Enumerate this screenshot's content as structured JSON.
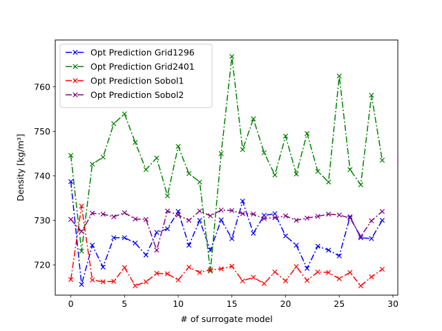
{
  "chart_data": {
    "type": "line",
    "xlabel": "# of surrogate model",
    "ylabel": "Density [kg/m³]",
    "xlim": [
      -1.45,
      30.45
    ],
    "ylim": [
      713.2,
      770.5
    ],
    "xticks": [
      0,
      5,
      10,
      15,
      20,
      25,
      30
    ],
    "yticks": [
      720,
      730,
      740,
      750,
      760
    ],
    "legend_position": "top-left",
    "grid": false,
    "x": [
      0,
      1,
      2,
      3,
      4,
      5,
      6,
      7,
      8,
      9,
      10,
      11,
      12,
      13,
      14,
      15,
      16,
      17,
      18,
      19,
      20,
      21,
      22,
      23,
      24,
      25,
      26,
      27,
      28,
      29
    ],
    "series": [
      {
        "name": "Opt Prediction Grid1296",
        "color": "#0000ff",
        "values": [
          738.7,
          715.6,
          724.4,
          719.5,
          726.1,
          726.1,
          724.9,
          722.2,
          727.3,
          728.1,
          732.0,
          724.4,
          730.0,
          723.3,
          730.1,
          725.9,
          734.3,
          727.1,
          731.1,
          731.5,
          726.5,
          724.4,
          719.2,
          724.2,
          723.3,
          722.0,
          730.8,
          726.1,
          725.9,
          730.0
        ]
      },
      {
        "name": "Opt Prediction Grid2401",
        "color": "#008000",
        "values": [
          744.6,
          723.1,
          742.6,
          744.2,
          751.7,
          753.9,
          747.5,
          741.4,
          744.0,
          735.5,
          746.6,
          740.5,
          738.6,
          718.6,
          745.0,
          766.8,
          745.9,
          752.8,
          745.2,
          740.2,
          748.9,
          740.4,
          749.5,
          741.0,
          738.6,
          762.4,
          741.4,
          738.0,
          758.1,
          743.5
        ]
      },
      {
        "name": "Opt Prediction Sobol1",
        "color": "#ff0000",
        "values": [
          716.7,
          733.2,
          716.6,
          716.2,
          716.3,
          719.4,
          715.3,
          716.2,
          718.1,
          718.0,
          716.6,
          719.5,
          718.3,
          718.9,
          719.1,
          719.7,
          716.4,
          717.2,
          715.8,
          718.4,
          716.4,
          719.6,
          716.5,
          718.4,
          718.3,
          716.9,
          718.3,
          715.3,
          717.3,
          719.0
        ]
      },
      {
        "name": "Opt Prediction Sobol2",
        "color": "#800080",
        "values": [
          730.2,
          727.5,
          731.6,
          731.4,
          730.8,
          731.7,
          730.3,
          730.2,
          723.3,
          732.1,
          731.2,
          730.0,
          732.1,
          731.0,
          732.3,
          732.2,
          731.5,
          731.4,
          730.4,
          730.6,
          731.0,
          730.0,
          730.5,
          730.9,
          731.4,
          731.2,
          730.5,
          726.4,
          729.9,
          732.0
        ]
      }
    ]
  }
}
